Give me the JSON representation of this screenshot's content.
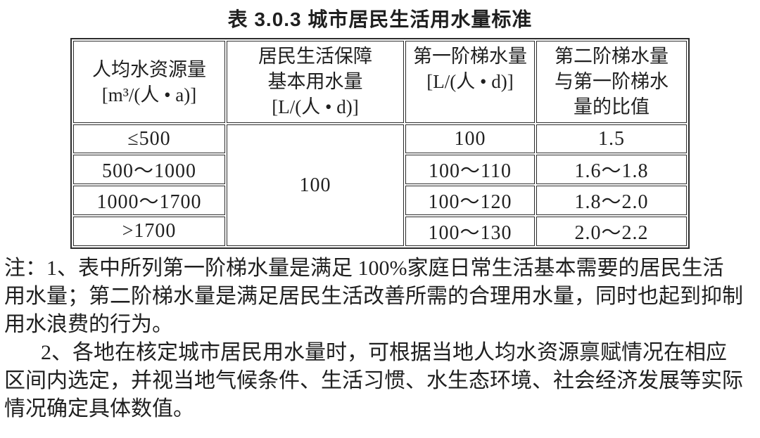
{
  "title": "表 3.0.3 城市居民生活用水量标准",
  "table": {
    "header": {
      "col1": {
        "line1": "人均水资源量",
        "line2": "[m³/(人 • a)]"
      },
      "col2": {
        "line1": "居民生活保障",
        "line2": "基本用水量",
        "line3": "[L/(人 • d)]"
      },
      "col3": {
        "line1": "第一阶梯水量",
        "line2": "[L/(人 • d)]"
      },
      "col4": {
        "line1": "第二阶梯水量",
        "line2": "与第一阶梯水",
        "line3": "量的比值"
      }
    },
    "merged_basic_usage": "100",
    "rows": [
      {
        "resource": "≤500",
        "tier1": "100",
        "ratio": "1.5"
      },
      {
        "resource": "500～1000",
        "tier1": "100～110",
        "ratio": "1.6～1.8"
      },
      {
        "resource": "1000～1700",
        "tier1": "100～120",
        "ratio": "1.8～2.0"
      },
      {
        "resource": ">1700",
        "tier1": "100～130",
        "ratio": "2.0～2.2"
      }
    ]
  },
  "notes": {
    "lines": [
      "注：1、表中所列第一阶梯水量是满足 100%家庭日常生活基本需要的居民生活",
      "用水量；第二阶梯水量是满足居民生活改善所需的合理用水量，同时也起到抑制",
      "用水浪费的行为。",
      "2、各地在核定城市居民用水量时，可根据当地人均水资源禀赋情况在相应",
      "区间内选定，并视当地气候条件、生活习惯、水生态环境、社会经济发展等实际",
      "情况确定具体数值。"
    ]
  },
  "colors": {
    "text": "#1f1f1f",
    "border": "#2b2b2b",
    "background": "#ffffff"
  }
}
